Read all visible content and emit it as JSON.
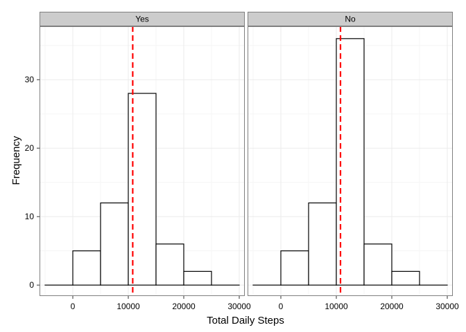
{
  "chart_data": {
    "type": "bar",
    "subtype": "histogram-facet",
    "xlabel": "Total Daily Steps",
    "ylabel": "Frequency",
    "xlim": [
      -6000,
      31000
    ],
    "ylim": [
      -1.6,
      37.8
    ],
    "x_ticks": [
      0,
      10000,
      20000,
      30000
    ],
    "y_ticks": [
      0,
      10,
      20,
      30
    ],
    "bin_width": 5000,
    "grid": true,
    "theme": "bw",
    "colors": {
      "bar_outline": "#000000",
      "bar_fill": "#ffffff",
      "mean_line": "#ff0000",
      "strip_bg": "#cccccc",
      "grid": "#ebebeb",
      "panel_border": "#7f7f7f"
    },
    "bin_edges": [
      -5000,
      0,
      5000,
      10000,
      15000,
      20000,
      25000,
      30000
    ],
    "panels": [
      {
        "strip": "Yes",
        "counts": [
          0,
          5,
          12,
          28,
          6,
          2,
          0
        ],
        "mean": 10800
      },
      {
        "strip": "No",
        "counts": [
          0,
          5,
          12,
          36,
          6,
          2,
          0
        ],
        "mean": 10750
      }
    ]
  }
}
